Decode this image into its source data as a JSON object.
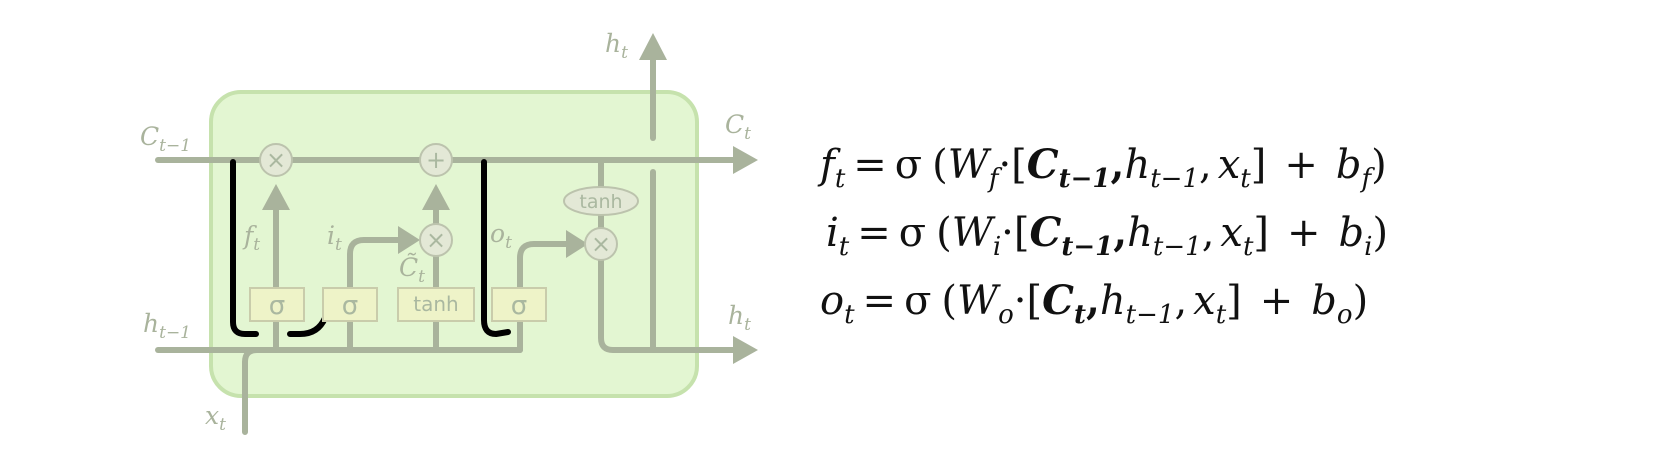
{
  "diagram": {
    "labels": {
      "h_top": {
        "base": "h",
        "sub": "t"
      },
      "c_prev": {
        "base": "C",
        "sub": "t−1"
      },
      "c_next": {
        "base": "C",
        "sub": "t"
      },
      "h_prev": {
        "base": "h",
        "sub": "t−1"
      },
      "h_next": {
        "base": "h",
        "sub": "t"
      },
      "x_in": {
        "base": "x",
        "sub": "t"
      },
      "f_gate": {
        "base": "f",
        "sub": "t"
      },
      "i_gate": {
        "base": "i",
        "sub": "t"
      },
      "o_gate": {
        "base": "o",
        "sub": "t"
      },
      "c_tilde": {
        "base": "C̃",
        "sub": "t"
      }
    },
    "gates": {
      "sigma_forget": "σ",
      "sigma_input": "σ",
      "tanh_candidate": "tanh",
      "sigma_output": "σ",
      "tanh_output": "tanh"
    },
    "ops": {
      "mult_forget": "×",
      "add_cell": "+",
      "mult_input": "×",
      "mult_output": "×"
    },
    "colors": {
      "cell_fill": "#e3f6d2",
      "cell_border": "#c6e2ad",
      "lines": "#a9b39c",
      "gate_fill": "#eef3c8",
      "gate_border": "#c9ccab",
      "peephole": "#000000"
    }
  },
  "equations": [
    {
      "lhs": {
        "base": "f",
        "sub": "t"
      },
      "eq": "=",
      "fn": "σ",
      "open": "(",
      "weight": {
        "base": "W",
        "sub": "f"
      },
      "dot": "·",
      "lbracket": "[",
      "peep": {
        "base": "C",
        "sub": "t−1"
      },
      "comma1": ",",
      "h": {
        "base": "h",
        "sub": "t−1"
      },
      "comma2": ",",
      "x": {
        "base": "x",
        "sub": "t"
      },
      "rbracket": "]",
      "plus": "+",
      "bias": {
        "base": "b",
        "sub": "f"
      },
      "close": ")"
    },
    {
      "lhs": {
        "base": "i",
        "sub": "t"
      },
      "eq": "=",
      "fn": "σ",
      "open": "(",
      "weight": {
        "base": "W",
        "sub": "i"
      },
      "dot": "·",
      "lbracket": "[",
      "peep": {
        "base": "C",
        "sub": "t−1"
      },
      "comma1": ",",
      "h": {
        "base": "h",
        "sub": "t−1"
      },
      "comma2": ",",
      "x": {
        "base": "x",
        "sub": "t"
      },
      "rbracket": "]",
      "plus": "+",
      "bias": {
        "base": "b",
        "sub": "i"
      },
      "close": ")"
    },
    {
      "lhs": {
        "base": "o",
        "sub": "t"
      },
      "eq": "=",
      "fn": "σ",
      "open": "(",
      "weight": {
        "base": "W",
        "sub": "o"
      },
      "dot": "·",
      "lbracket": "[",
      "peep": {
        "base": "C",
        "sub": "t"
      },
      "comma1": ",",
      "h": {
        "base": "h",
        "sub": "t−1"
      },
      "comma2": ",",
      "x": {
        "base": "x",
        "sub": "t"
      },
      "rbracket": "]",
      "plus": "+",
      "bias": {
        "base": "b",
        "sub": "o"
      },
      "close": ")"
    }
  ]
}
